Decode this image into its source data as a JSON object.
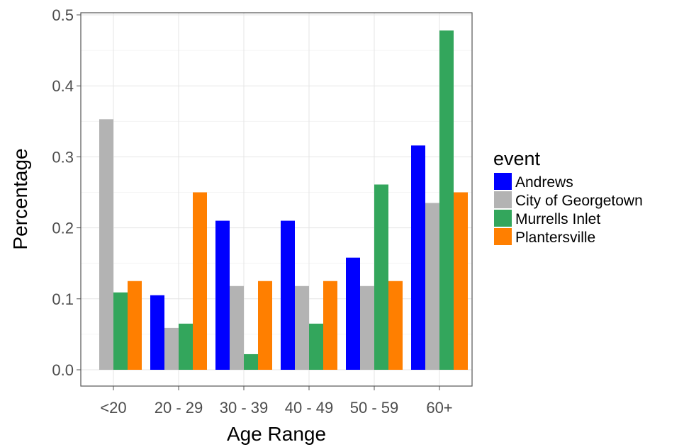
{
  "chart_data": {
    "type": "bar",
    "title": "",
    "xlabel": "Age Range",
    "ylabel": "Percentage",
    "categories": [
      "<20",
      "20 - 29",
      "30 - 39",
      "40 - 49",
      "50 - 59",
      "60+"
    ],
    "y_ticks": [
      "0.0",
      "0.1",
      "0.2",
      "0.3",
      "0.4",
      "0.5"
    ],
    "ylim": [
      0,
      0.52
    ],
    "grid": true,
    "legend": {
      "title": "event",
      "position": "right"
    },
    "series": [
      {
        "name": "Andrews",
        "color": "#0000ff",
        "values": [
          null,
          0.105,
          0.21,
          0.21,
          0.158,
          0.316
        ]
      },
      {
        "name": "City of Georgetown",
        "color": "#b3b3b3",
        "values": [
          0.353,
          0.059,
          0.118,
          0.118,
          0.118,
          0.235
        ]
      },
      {
        "name": "Murrells Inlet",
        "color": "#33a65c",
        "values": [
          0.109,
          0.065,
          0.022,
          0.065,
          0.261,
          0.478
        ]
      },
      {
        "name": "Plantersville",
        "color": "#ff7f00",
        "values": [
          0.125,
          0.25,
          0.125,
          0.125,
          0.125,
          0.25
        ]
      }
    ]
  }
}
